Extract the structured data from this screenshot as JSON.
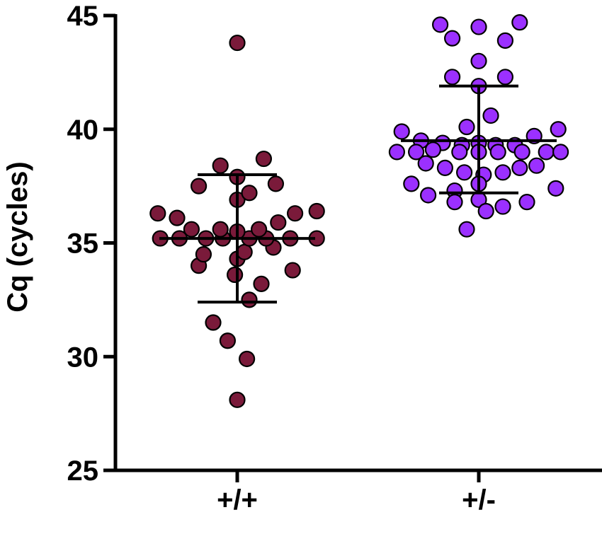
{
  "chart_data": {
    "type": "scatter",
    "title": "",
    "xlabel": "",
    "ylabel": "Cq (cycles)",
    "ylim": [
      25,
      45
    ],
    "yticks": [
      25,
      30,
      35,
      40,
      45
    ],
    "categories": [
      "+/+",
      "+/-"
    ],
    "grid": false,
    "legend": "none",
    "series": [
      {
        "category": "+/+",
        "color": "#7a1a3a",
        "mean": 35.2,
        "sd_upper": 38.0,
        "sd_lower": 32.4,
        "points": [
          {
            "offset": 0.0,
            "y": 43.8
          },
          {
            "offset": 0.0,
            "y": 28.1
          },
          {
            "offset": 0.04,
            "y": 29.9
          },
          {
            "offset": -0.04,
            "y": 30.7
          },
          {
            "offset": -0.1,
            "y": 31.5
          },
          {
            "offset": 0.05,
            "y": 32.5
          },
          {
            "offset": 0.1,
            "y": 33.2
          },
          {
            "offset": 0.23,
            "y": 33.8
          },
          {
            "offset": -0.01,
            "y": 33.6
          },
          {
            "offset": -0.16,
            "y": 34.0
          },
          {
            "offset": 0.0,
            "y": 34.3
          },
          {
            "offset": -0.14,
            "y": 34.5
          },
          {
            "offset": 0.03,
            "y": 34.6
          },
          {
            "offset": 0.15,
            "y": 34.8
          },
          {
            "offset": -0.32,
            "y": 35.2
          },
          {
            "offset": -0.24,
            "y": 35.2
          },
          {
            "offset": -0.13,
            "y": 35.2
          },
          {
            "offset": -0.06,
            "y": 35.2
          },
          {
            "offset": 0.05,
            "y": 35.2
          },
          {
            "offset": 0.12,
            "y": 35.2
          },
          {
            "offset": 0.22,
            "y": 35.2
          },
          {
            "offset": 0.33,
            "y": 35.2
          },
          {
            "offset": -0.19,
            "y": 35.6
          },
          {
            "offset": -0.07,
            "y": 35.6
          },
          {
            "offset": 0.0,
            "y": 35.5
          },
          {
            "offset": 0.09,
            "y": 35.6
          },
          {
            "offset": 0.17,
            "y": 35.9
          },
          {
            "offset": -0.33,
            "y": 36.3
          },
          {
            "offset": -0.25,
            "y": 36.1
          },
          {
            "offset": 0.24,
            "y": 36.3
          },
          {
            "offset": 0.33,
            "y": 36.4
          },
          {
            "offset": 0.0,
            "y": 36.9
          },
          {
            "offset": 0.05,
            "y": 37.2
          },
          {
            "offset": -0.16,
            "y": 37.5
          },
          {
            "offset": 0.16,
            "y": 37.6
          },
          {
            "offset": 0.0,
            "y": 37.9
          },
          {
            "offset": -0.07,
            "y": 38.4
          },
          {
            "offset": 0.11,
            "y": 38.7
          }
        ]
      },
      {
        "category": "+/-",
        "color": "#9b30ff",
        "mean": 39.5,
        "sd_upper": 41.9,
        "sd_lower": 37.2,
        "points": [
          {
            "offset": -0.16,
            "y": 44.6
          },
          {
            "offset": 0.0,
            "y": 44.5
          },
          {
            "offset": 0.17,
            "y": 44.7
          },
          {
            "offset": -0.11,
            "y": 44.0
          },
          {
            "offset": 0.11,
            "y": 43.9
          },
          {
            "offset": 0.0,
            "y": 43.0
          },
          {
            "offset": -0.11,
            "y": 42.3
          },
          {
            "offset": 0.11,
            "y": 42.3
          },
          {
            "offset": 0.0,
            "y": 41.9
          },
          {
            "offset": 0.05,
            "y": 40.6
          },
          {
            "offset": -0.05,
            "y": 40.1
          },
          {
            "offset": -0.32,
            "y": 39.9
          },
          {
            "offset": 0.23,
            "y": 39.7
          },
          {
            "offset": 0.33,
            "y": 40.0
          },
          {
            "offset": -0.24,
            "y": 39.5
          },
          {
            "offset": -0.15,
            "y": 39.4
          },
          {
            "offset": 0.0,
            "y": 39.4
          },
          {
            "offset": 0.15,
            "y": 39.3
          },
          {
            "offset": -0.07,
            "y": 39.3
          },
          {
            "offset": 0.07,
            "y": 39.3
          },
          {
            "offset": -0.34,
            "y": 39.0
          },
          {
            "offset": -0.26,
            "y": 39.0
          },
          {
            "offset": -0.19,
            "y": 39.1
          },
          {
            "offset": -0.08,
            "y": 39.0
          },
          {
            "offset": 0.0,
            "y": 39.0
          },
          {
            "offset": 0.08,
            "y": 39.0
          },
          {
            "offset": 0.18,
            "y": 39.0
          },
          {
            "offset": 0.28,
            "y": 39.0
          },
          {
            "offset": 0.34,
            "y": 39.0
          },
          {
            "offset": -0.22,
            "y": 38.5
          },
          {
            "offset": -0.14,
            "y": 38.3
          },
          {
            "offset": -0.06,
            "y": 38.1
          },
          {
            "offset": 0.02,
            "y": 38.0
          },
          {
            "offset": 0.1,
            "y": 38.1
          },
          {
            "offset": 0.17,
            "y": 38.3
          },
          {
            "offset": 0.24,
            "y": 38.4
          },
          {
            "offset": -0.28,
            "y": 37.6
          },
          {
            "offset": 0.0,
            "y": 37.6
          },
          {
            "offset": 0.32,
            "y": 37.4
          },
          {
            "offset": -0.1,
            "y": 37.3
          },
          {
            "offset": -0.21,
            "y": 37.1
          },
          {
            "offset": 0.0,
            "y": 36.9
          },
          {
            "offset": 0.2,
            "y": 36.8
          },
          {
            "offset": -0.1,
            "y": 36.8
          },
          {
            "offset": 0.1,
            "y": 36.6
          },
          {
            "offset": 0.03,
            "y": 36.4
          },
          {
            "offset": -0.05,
            "y": 35.6
          }
        ]
      }
    ]
  }
}
